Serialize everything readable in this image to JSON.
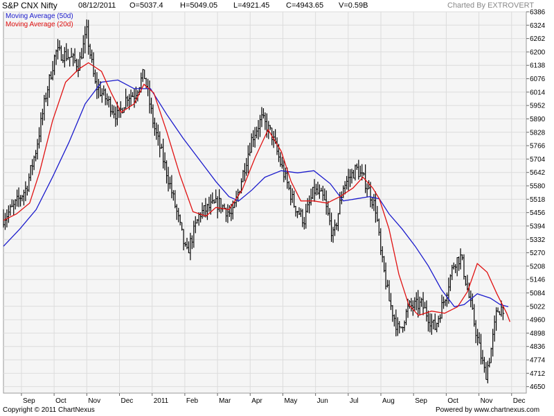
{
  "header": {
    "title": "S&P CNX Nifty",
    "date": "08/12/2011",
    "open": "O=5037.4",
    "high": "H=5049.05",
    "low": "L=4921.45",
    "close": "C=4943.65",
    "volume": "V=0.59B",
    "credit": "Charted By EXTROVERT"
  },
  "footer": {
    "copyright": "Copyright © 2011 ChartNexus",
    "powered": "Powered by www.chartnexus.com"
  },
  "colors": {
    "ma50": "#1a1acc",
    "ma20": "#e01010",
    "bars": "#000000",
    "plot_bg": "#f5f5f5",
    "grid": "#dcdcdc"
  },
  "chart_data": {
    "type": "line",
    "grid": true,
    "ylim": [
      4620,
      6386
    ],
    "y_ticks": [
      "6386",
      "6324",
      "6262",
      "6200",
      "6138",
      "6076",
      "6014",
      "5952",
      "5890",
      "5828",
      "5766",
      "5704",
      "5642",
      "5580",
      "5518",
      "5456",
      "5394",
      "5332",
      "5270",
      "5208",
      "5146",
      "5084",
      "5022",
      "4960",
      "4898",
      "4836",
      "4774",
      "4712",
      "4650"
    ],
    "x_ticks": [
      "Sep",
      "Oct",
      "Nov",
      "Dec",
      "2011",
      "Feb",
      "Mar",
      "Apr",
      "May",
      "Jun",
      "Jul",
      "Aug",
      "Sep",
      "Oct",
      "Nov",
      "Dec"
    ],
    "x_tick_pos": [
      0.55,
      1.55,
      2.55,
      3.55,
      4.55,
      5.55,
      6.55,
      7.55,
      8.55,
      9.55,
      10.55,
      11.55,
      12.55,
      13.55,
      14.55,
      15.55
    ],
    "price_anchors": [
      [
        0,
        5430
      ],
      [
        0.3,
        5480
      ],
      [
        0.7,
        5570
      ],
      [
        1.0,
        5750
      ],
      [
        1.3,
        6000
      ],
      [
        1.6,
        6200
      ],
      [
        2.0,
        6180
      ],
      [
        2.3,
        6140
      ],
      [
        2.55,
        6290
      ],
      [
        2.8,
        6050
      ],
      [
        3.2,
        5970
      ],
      [
        3.5,
        5900
      ],
      [
        3.8,
        6000
      ],
      [
        4.0,
        6000
      ],
      [
        4.3,
        6100
      ],
      [
        4.6,
        5860
      ],
      [
        5.0,
        5640
      ],
      [
        5.3,
        5460
      ],
      [
        5.6,
        5260
      ],
      [
        6.0,
        5450
      ],
      [
        6.3,
        5480
      ],
      [
        6.6,
        5500
      ],
      [
        7.0,
        5440
      ],
      [
        7.3,
        5620
      ],
      [
        7.6,
        5800
      ],
      [
        7.9,
        5890
      ],
      [
        8.2,
        5820
      ],
      [
        8.55,
        5650
      ],
      [
        8.9,
        5490
      ],
      [
        9.2,
        5420
      ],
      [
        9.5,
        5560
      ],
      [
        9.8,
        5520
      ],
      [
        10.1,
        5340
      ],
      [
        10.4,
        5580
      ],
      [
        10.8,
        5660
      ],
      [
        11.1,
        5590
      ],
      [
        11.4,
        5470
      ],
      [
        11.55,
        5260
      ],
      [
        11.8,
        5050
      ],
      [
        12.1,
        4900
      ],
      [
        12.4,
        5020
      ],
      [
        12.8,
        5030
      ],
      [
        13.2,
        4920
      ],
      [
        13.5,
        5060
      ],
      [
        13.8,
        5230
      ],
      [
        14.0,
        5250
      ],
      [
        14.2,
        5100
      ],
      [
        14.4,
        4950
      ],
      [
        14.6,
        4800
      ],
      [
        14.75,
        4700
      ],
      [
        14.9,
        4800
      ],
      [
        15.1,
        5000
      ],
      [
        15.3,
        5020
      ]
    ],
    "series": [
      {
        "name": "Moving Average (50d)",
        "color": "#1a1acc",
        "points": [
          [
            0,
            5300
          ],
          [
            0.5,
            5380
          ],
          [
            1.0,
            5470
          ],
          [
            1.5,
            5620
          ],
          [
            2.0,
            5780
          ],
          [
            2.5,
            5960
          ],
          [
            3.0,
            6060
          ],
          [
            3.5,
            6070
          ],
          [
            4.0,
            6030
          ],
          [
            4.5,
            6030
          ],
          [
            5.0,
            5910
          ],
          [
            5.5,
            5800
          ],
          [
            6.0,
            5700
          ],
          [
            6.5,
            5600
          ],
          [
            6.9,
            5530
          ],
          [
            7.2,
            5510
          ],
          [
            7.6,
            5560
          ],
          [
            8.0,
            5620
          ],
          [
            8.5,
            5650
          ],
          [
            9.0,
            5640
          ],
          [
            9.5,
            5650
          ],
          [
            10.0,
            5590
          ],
          [
            10.4,
            5510
          ],
          [
            10.8,
            5520
          ],
          [
            11.2,
            5530
          ],
          [
            11.5,
            5520
          ],
          [
            11.8,
            5450
          ],
          [
            12.2,
            5380
          ],
          [
            12.6,
            5300
          ],
          [
            13.0,
            5210
          ],
          [
            13.4,
            5100
          ],
          [
            13.8,
            5020
          ],
          [
            14.1,
            5030
          ],
          [
            14.5,
            5080
          ],
          [
            14.9,
            5060
          ],
          [
            15.2,
            5030
          ],
          [
            15.45,
            5020
          ]
        ]
      },
      {
        "name": "Moving Average (20d)",
        "color": "#e01010",
        "points": [
          [
            0,
            5420
          ],
          [
            0.4,
            5450
          ],
          [
            0.8,
            5500
          ],
          [
            1.1,
            5640
          ],
          [
            1.5,
            5880
          ],
          [
            1.9,
            6060
          ],
          [
            2.3,
            6120
          ],
          [
            2.6,
            6150
          ],
          [
            3.0,
            6110
          ],
          [
            3.3,
            6010
          ],
          [
            3.6,
            5920
          ],
          [
            4.0,
            5960
          ],
          [
            4.3,
            6050
          ],
          [
            4.6,
            6010
          ],
          [
            5.0,
            5830
          ],
          [
            5.4,
            5630
          ],
          [
            5.8,
            5460
          ],
          [
            6.2,
            5440
          ],
          [
            6.5,
            5480
          ],
          [
            6.9,
            5470
          ],
          [
            7.3,
            5560
          ],
          [
            7.7,
            5710
          ],
          [
            8.1,
            5840
          ],
          [
            8.5,
            5740
          ],
          [
            8.8,
            5600
          ],
          [
            9.1,
            5510
          ],
          [
            9.5,
            5510
          ],
          [
            9.9,
            5500
          ],
          [
            10.3,
            5530
          ],
          [
            10.7,
            5570
          ],
          [
            11.0,
            5620
          ],
          [
            11.3,
            5570
          ],
          [
            11.5,
            5520
          ],
          [
            11.8,
            5380
          ],
          [
            12.1,
            5170
          ],
          [
            12.4,
            5030
          ],
          [
            12.7,
            4980
          ],
          [
            13.1,
            5000
          ],
          [
            13.5,
            4990
          ],
          [
            13.9,
            5020
          ],
          [
            14.2,
            5090
          ],
          [
            14.5,
            5220
          ],
          [
            14.8,
            5180
          ],
          [
            15.1,
            5080
          ],
          [
            15.4,
            4990
          ],
          [
            15.5,
            4950
          ]
        ]
      }
    ]
  }
}
